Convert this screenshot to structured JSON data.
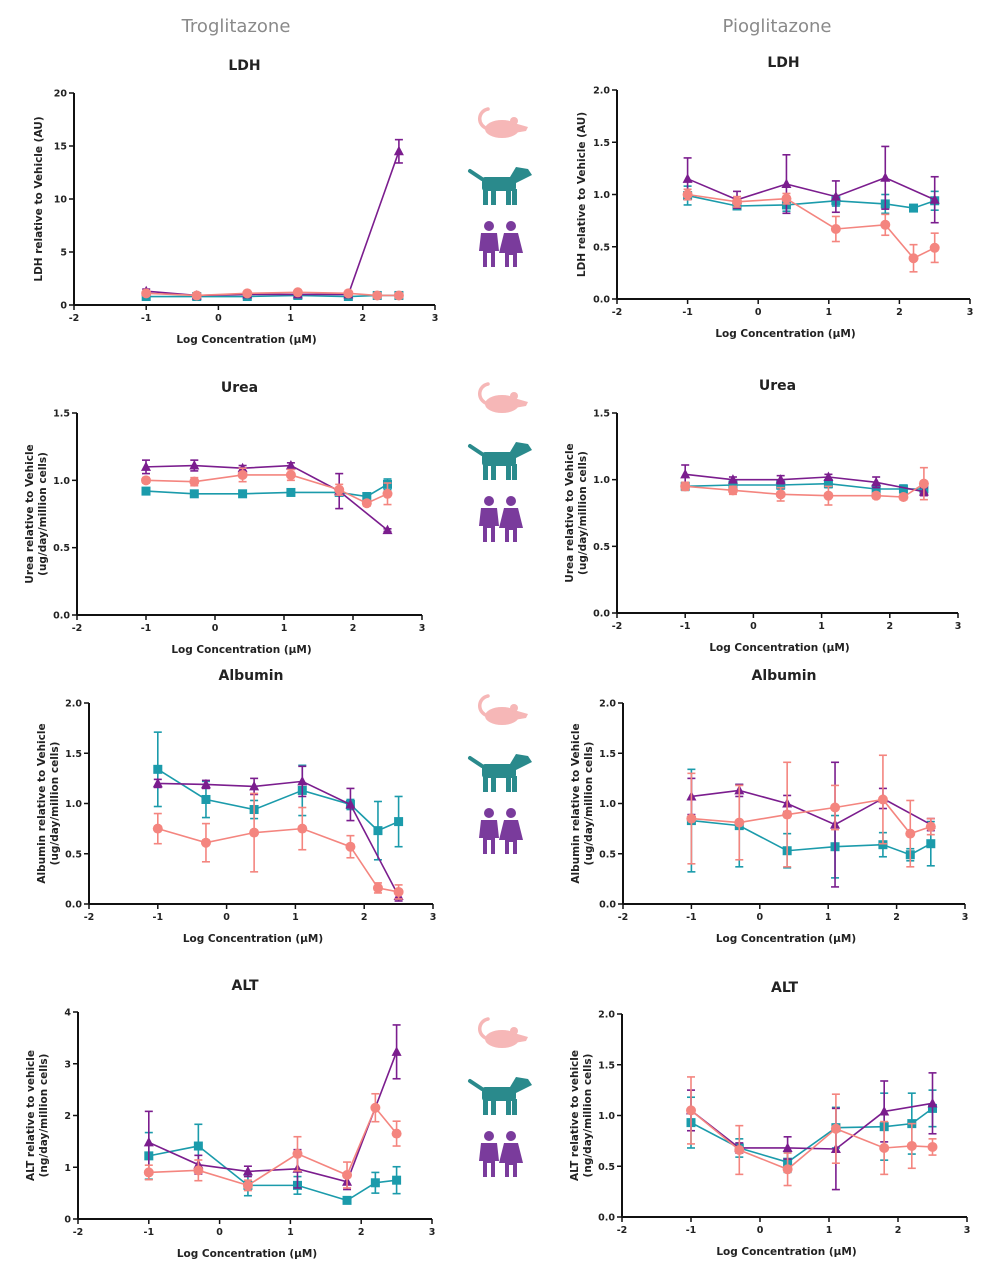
{
  "columns": [
    "Troglitazone",
    "Pioglitazone"
  ],
  "species": [
    {
      "icon": "rat-icon",
      "color": "#f4857f",
      "icon_color": "#f6b7b7",
      "marker": "circle"
    },
    {
      "icon": "dog-icon",
      "color": "#1b9bab",
      "icon_color": "#2a8a8c",
      "marker": "square"
    },
    {
      "icon": "people-icon",
      "color": "#7b1d8e",
      "icon_color": "#7a3b9c",
      "marker": "triangle"
    }
  ],
  "chart_data": [
    {
      "type": "line",
      "title": "LDH",
      "compound": "Troglitazone",
      "xlabel": "Log Concentration (µM)",
      "ylabel": "LDH relative to Vehicle (AU)",
      "ylabel_unit": "",
      "xlim": [
        -2,
        3
      ],
      "xticks": [
        "-2",
        "-1",
        "0",
        "1",
        "2",
        "3"
      ],
      "ylim": [
        0,
        20
      ],
      "yticks": [
        "0",
        "5",
        "10",
        "15",
        "20"
      ],
      "x": [
        -1,
        -0.3,
        0.4,
        1.1,
        1.8,
        2.2,
        2.5
      ],
      "series": [
        {
          "species": "rat",
          "values": [
            1.1,
            0.9,
            1.1,
            1.2,
            1.1,
            0.9,
            0.9
          ],
          "errors": [
            0.2,
            0.1,
            0.1,
            0.2,
            0.1,
            0.1,
            0.1
          ]
        },
        {
          "species": "dog",
          "values": [
            0.8,
            0.8,
            0.8,
            0.9,
            0.8,
            0.9,
            0.9
          ],
          "errors": [
            0.1,
            0.1,
            0.1,
            0.1,
            0.1,
            0.1,
            0.1
          ]
        },
        {
          "species": "human",
          "values": [
            1.3,
            0.9,
            1.0,
            1.0,
            1.0,
            null,
            14.5
          ],
          "errors": [
            0.2,
            0.1,
            0.1,
            0.1,
            0.1,
            null,
            1.1
          ]
        }
      ]
    },
    {
      "type": "line",
      "title": "LDH",
      "compound": "Pioglitazone",
      "xlabel": "Log Concentration (µM)",
      "ylabel": "LDH relative to Vehicle (AU)",
      "ylabel_unit": "",
      "xlim": [
        -2,
        3
      ],
      "xticks": [
        "-2",
        "-1",
        "0",
        "1",
        "2",
        "3"
      ],
      "ylim": [
        0,
        2
      ],
      "yticks": [
        "0.0",
        "0.5",
        "1.0",
        "1.5",
        "2.0"
      ],
      "x": [
        -1,
        -0.3,
        0.4,
        1.1,
        1.8,
        2.2,
        2.5
      ],
      "series": [
        {
          "species": "rat",
          "values": [
            1.0,
            0.93,
            0.96,
            0.67,
            0.71,
            0.39,
            0.49
          ],
          "errors": [
            0.05,
            0.05,
            0.05,
            0.12,
            0.1,
            0.13,
            0.14
          ]
        },
        {
          "species": "dog",
          "values": [
            0.99,
            0.89,
            0.9,
            0.94,
            0.91,
            0.87,
            0.94
          ],
          "errors": [
            0.09,
            0.02,
            0.06,
            0.05,
            0.09,
            0.03,
            0.09
          ]
        },
        {
          "species": "human",
          "values": [
            1.15,
            0.95,
            1.1,
            0.98,
            1.16,
            null,
            0.95
          ],
          "errors": [
            0.2,
            0.08,
            0.28,
            0.15,
            0.3,
            null,
            0.22
          ]
        }
      ]
    },
    {
      "type": "line",
      "title": "Urea",
      "compound": "Troglitazone",
      "xlabel": "Log Concentration (µM)",
      "ylabel": "Urea relative to Vehicle",
      "ylabel_unit": "(ug/day/million cells)",
      "xlim": [
        -2,
        3
      ],
      "xticks": [
        "-2",
        "-1",
        "0",
        "1",
        "2",
        "3"
      ],
      "ylim": [
        0,
        1.5
      ],
      "yticks": [
        "0.0",
        "0.5",
        "1.0",
        "1.5"
      ],
      "x": [
        -1,
        -0.3,
        0.4,
        1.1,
        1.8,
        2.2,
        2.5
      ],
      "series": [
        {
          "species": "rat",
          "values": [
            1.0,
            0.99,
            1.04,
            1.04,
            0.93,
            0.83,
            0.9
          ],
          "errors": [
            0.02,
            0.03,
            0.05,
            0.04,
            0.04,
            0.02,
            0.08
          ]
        },
        {
          "species": "dog",
          "values": [
            0.92,
            0.9,
            0.9,
            0.91,
            0.91,
            0.88,
            0.97
          ],
          "errors": [
            0.02,
            0.02,
            0.02,
            0.02,
            0.02,
            0.02,
            0.04
          ]
        },
        {
          "species": "human",
          "values": [
            1.1,
            1.11,
            1.09,
            1.11,
            0.92,
            null,
            0.63
          ],
          "errors": [
            0.05,
            0.04,
            0.02,
            0.02,
            0.13,
            null,
            0.01
          ]
        }
      ]
    },
    {
      "type": "line",
      "title": "Urea",
      "compound": "Pioglitazone",
      "xlabel": "Log Concentration (µM)",
      "ylabel": "Urea relative to Vehicle",
      "ylabel_unit": "(ug/day/million cells)",
      "xlim": [
        -2,
        3
      ],
      "xticks": [
        "-2",
        "-1",
        "0",
        "1",
        "2",
        "3"
      ],
      "ylim": [
        0,
        1.5
      ],
      "yticks": [
        "0.0",
        "0.5",
        "1.0",
        "1.5"
      ],
      "x": [
        -1,
        -0.3,
        0.4,
        1.1,
        1.8,
        2.2,
        2.5
      ],
      "series": [
        {
          "species": "rat",
          "values": [
            0.95,
            0.92,
            0.89,
            0.88,
            0.88,
            0.87,
            0.97
          ],
          "errors": [
            0.03,
            0.03,
            0.05,
            0.07,
            0.02,
            0.02,
            0.12
          ]
        },
        {
          "species": "dog",
          "values": [
            0.95,
            0.96,
            0.96,
            0.97,
            0.93,
            0.93,
            0.93
          ],
          "errors": [
            0.03,
            0.03,
            0.03,
            0.03,
            0.03,
            0.03,
            0.03
          ]
        },
        {
          "species": "human",
          "values": [
            1.04,
            1.0,
            1.0,
            1.02,
            0.98,
            null,
            0.91
          ],
          "errors": [
            0.07,
            0.02,
            0.03,
            0.02,
            0.04,
            null,
            0.03
          ]
        }
      ]
    },
    {
      "type": "line",
      "title": "Albumin",
      "compound": "Troglitazone",
      "xlabel": "Log Concentration (µM)",
      "ylabel": "Albumin relative to Vehicle",
      "ylabel_unit": "(ug/day/million cells)",
      "xlim": [
        -2,
        3
      ],
      "xticks": [
        "-2",
        "-1",
        "0",
        "1",
        "2",
        "3"
      ],
      "ylim": [
        0,
        2
      ],
      "yticks": [
        "0.0",
        "0.5",
        "1.0",
        "1.5",
        "2.0"
      ],
      "x": [
        -1,
        -0.3,
        0.4,
        1.1,
        1.8,
        2.2,
        2.5
      ],
      "series": [
        {
          "species": "rat",
          "values": [
            0.75,
            0.61,
            0.71,
            0.75,
            0.57,
            0.16,
            0.12
          ],
          "errors": [
            0.15,
            0.19,
            0.39,
            0.21,
            0.11,
            0.05,
            0.07
          ]
        },
        {
          "species": "dog",
          "values": [
            1.34,
            1.04,
            0.94,
            1.13,
            0.99,
            0.73,
            0.82
          ],
          "errors": [
            0.37,
            0.18,
            0.09,
            0.25,
            0.05,
            0.29,
            0.25
          ]
        },
        {
          "species": "human",
          "values": [
            1.2,
            1.19,
            1.17,
            1.22,
            0.99,
            null,
            0.08
          ],
          "errors": [
            0.04,
            0.04,
            0.08,
            0.15,
            0.16,
            null,
            0.05
          ]
        }
      ]
    },
    {
      "type": "line",
      "title": "Albumin",
      "compound": "Pioglitazone",
      "xlabel": "Log Concentration (µM)",
      "ylabel": "Albumin relative to Vehicle",
      "ylabel_unit": "(ug/day/million cells)",
      "xlim": [
        -2,
        3
      ],
      "xticks": [
        "-2",
        "-1",
        "0",
        "1",
        "2",
        "3"
      ],
      "ylim": [
        0,
        2
      ],
      "yticks": [
        "0.0",
        "0.5",
        "1.0",
        "1.5",
        "2.0"
      ],
      "x": [
        -1,
        -0.3,
        0.4,
        1.1,
        1.8,
        2.2,
        2.5
      ],
      "series": [
        {
          "species": "rat",
          "values": [
            0.85,
            0.81,
            0.89,
            0.96,
            1.04,
            0.7,
            0.77
          ],
          "errors": [
            0.45,
            0.37,
            0.52,
            0.22,
            0.44,
            0.33,
            0.08
          ]
        },
        {
          "species": "dog",
          "values": [
            0.83,
            0.78,
            0.53,
            0.57,
            0.59,
            0.49,
            0.6
          ],
          "errors": [
            0.51,
            0.41,
            0.17,
            0.31,
            0.12,
            0.06,
            0.22
          ]
        },
        {
          "species": "human",
          "values": [
            1.07,
            1.13,
            1.0,
            0.79,
            1.05,
            null,
            0.79
          ],
          "errors": [
            0.18,
            0.06,
            0.08,
            0.62,
            0.1,
            null,
            0.06
          ]
        }
      ]
    },
    {
      "type": "line",
      "title": "ALT",
      "compound": "Troglitazone",
      "xlabel": "Log Concentration (µM)",
      "ylabel": "ALT relative to vehicle",
      "ylabel_unit": "(ng/day/million cells)",
      "xlim": [
        -2,
        3
      ],
      "xticks": [
        "-2",
        "-1",
        "0",
        "1",
        "2",
        "3"
      ],
      "ylim": [
        0,
        4
      ],
      "yticks": [
        "0",
        "1",
        "2",
        "3",
        "4"
      ],
      "x": [
        -1,
        -0.3,
        0.4,
        1.1,
        1.8,
        2.2,
        2.5
      ],
      "series": [
        {
          "species": "rat",
          "values": [
            0.9,
            0.94,
            0.65,
            1.26,
            0.85,
            2.15,
            1.65
          ],
          "errors": [
            0.14,
            0.2,
            0.1,
            0.33,
            0.25,
            0.27,
            0.24
          ]
        },
        {
          "species": "dog",
          "values": [
            1.22,
            1.41,
            0.65,
            0.65,
            0.36,
            0.7,
            0.75
          ],
          "errors": [
            0.45,
            0.42,
            0.2,
            0.17,
            0.05,
            0.2,
            0.26
          ]
        },
        {
          "species": "human",
          "values": [
            1.48,
            1.05,
            0.92,
            0.97,
            0.72,
            null,
            3.23
          ],
          "errors": [
            0.6,
            0.18,
            0.1,
            0.37,
            0.15,
            null,
            0.52
          ]
        }
      ]
    },
    {
      "type": "line",
      "title": "ALT",
      "compound": "Pioglitazone",
      "xlabel": "Log Concentration (µM)",
      "ylabel": "ALT relative to vehicle",
      "ylabel_unit": "(ng/day/million cells)",
      "xlim": [
        -2,
        3
      ],
      "xticks": [
        "-2",
        "-1",
        "0",
        "1",
        "2",
        "3"
      ],
      "ylim": [
        0,
        2
      ],
      "yticks": [
        "0.0",
        "0.5",
        "1.0",
        "1.5",
        "2.0"
      ],
      "x": [
        -1,
        -0.3,
        0.4,
        1.1,
        1.8,
        2.2,
        2.5
      ],
      "series": [
        {
          "species": "rat",
          "values": [
            1.05,
            0.66,
            0.47,
            0.87,
            0.68,
            0.7,
            0.69
          ],
          "errors": [
            0.33,
            0.24,
            0.16,
            0.34,
            0.26,
            0.22,
            0.08
          ]
        },
        {
          "species": "dog",
          "values": [
            0.93,
            0.68,
            0.54,
            0.88,
            0.89,
            0.92,
            1.07
          ],
          "errors": [
            0.25,
            0.09,
            0.1,
            0.2,
            0.33,
            0.3,
            0.18
          ]
        },
        {
          "species": "human",
          "values": [
            1.05,
            0.68,
            0.68,
            0.67,
            1.04,
            null,
            1.12
          ],
          "errors": [
            0.2,
            0.05,
            0.11,
            0.4,
            0.3,
            null,
            0.3
          ]
        }
      ]
    }
  ]
}
